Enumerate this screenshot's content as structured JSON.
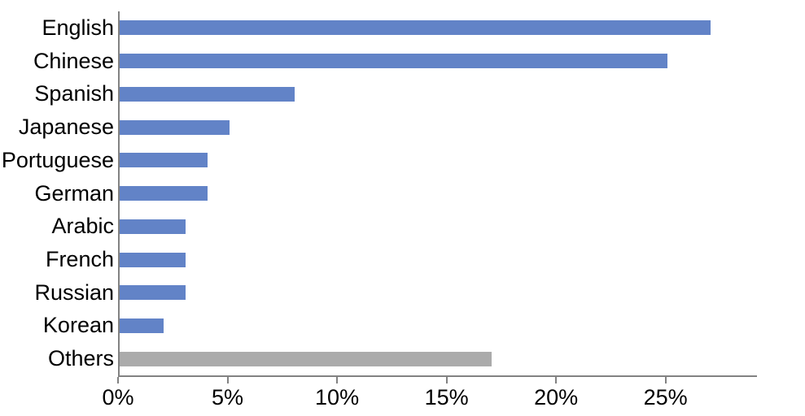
{
  "chart_data": {
    "type": "bar",
    "orientation": "horizontal",
    "title": "",
    "categories": [
      "English",
      "Chinese",
      "Spanish",
      "Japanese",
      "Portuguese",
      "German",
      "Arabic",
      "French",
      "Russian",
      "Korean",
      "Others"
    ],
    "values": [
      27,
      25,
      8,
      5,
      4,
      4,
      3,
      3,
      3,
      2,
      17
    ],
    "value_suffix": "%",
    "bar_colors": [
      "#6283C7",
      "#6283C7",
      "#6283C7",
      "#6283C7",
      "#6283C7",
      "#6283C7",
      "#6283C7",
      "#6283C7",
      "#6283C7",
      "#6283C7",
      "#ABABAB"
    ],
    "xlim": [
      0,
      29.1
    ],
    "x_tick_values": [
      0,
      5,
      10,
      15,
      20,
      25
    ],
    "x_tick_labels": [
      "0%",
      "5%",
      "10%",
      "15%",
      "20%",
      "25%"
    ],
    "grid": false,
    "legend": false
  },
  "palette": {
    "bar_blue": "#6283C7",
    "bar_gray": "#ABABAB",
    "axis": "#828282",
    "text": "#000000",
    "background": "#FFFFFF"
  }
}
